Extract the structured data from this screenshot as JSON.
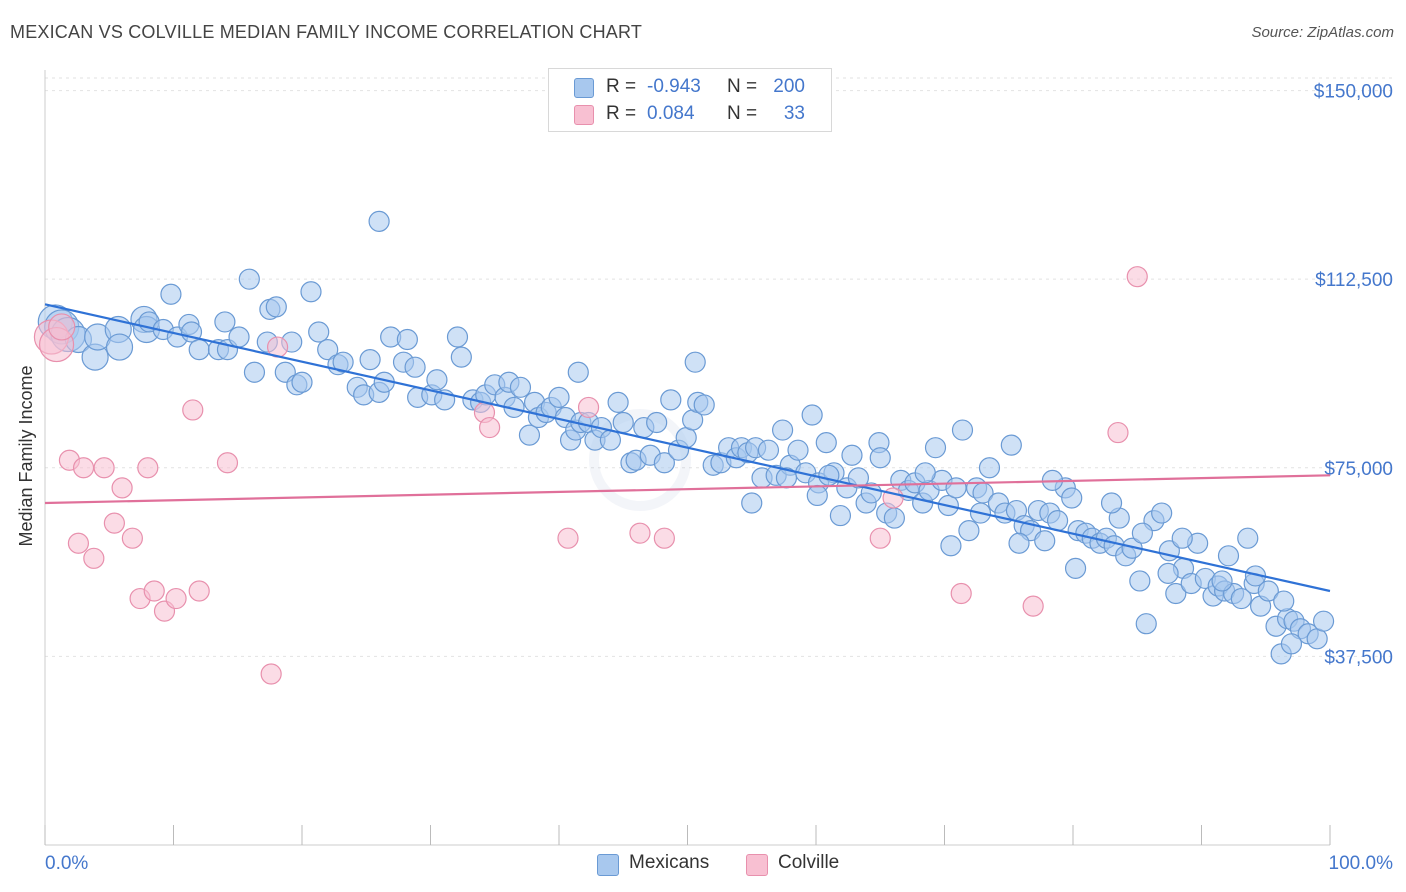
{
  "header": {
    "title": "MEXICAN VS COLVILLE MEDIAN FAMILY INCOME CORRELATION CHART",
    "source": "Source: ZipAtlas.com"
  },
  "legend": {
    "rows": [
      {
        "r_label": "R =",
        "r_value": "-0.943",
        "n_label": "N =",
        "n_value": "200"
      },
      {
        "r_label": "R =",
        "r_value": "0.084",
        "n_label": "N =",
        "n_value": "33"
      }
    ]
  },
  "bottom_legend": [
    "Mexicans",
    "Colville"
  ],
  "colors": {
    "blue_fill": "#a8c8ee",
    "blue_stroke": "#6a9ad4",
    "blue_line": "#2f72d6",
    "pink_fill": "#f8c0d2",
    "pink_stroke": "#e890ad",
    "pink_line": "#e0709a",
    "axis_label": "#4477cc",
    "grid": "#e2e2e2"
  },
  "chart_data": {
    "type": "scatter",
    "title": "MEXICAN VS COLVILLE MEDIAN FAMILY INCOME CORRELATION CHART",
    "xlabel": "",
    "ylabel": "Median Family Income",
    "xlim": [
      0,
      100
    ],
    "ylim": [
      0,
      152500
    ],
    "x_tick_labels": [
      "0.0%",
      "100.0%"
    ],
    "y_ticks": [
      37500,
      75000,
      112500,
      150000
    ],
    "y_tick_labels": [
      "$37,500",
      "$75,000",
      "$112,500",
      "$150,000"
    ],
    "grid": true,
    "series": [
      {
        "name": "Mexicans",
        "r": -0.943,
        "n": 200,
        "trend": {
          "x": [
            0,
            100
          ],
          "y": [
            107500,
            50500
          ]
        },
        "points": [
          [
            0.8,
            104000,
            3
          ],
          [
            1.3,
            103000,
            3
          ],
          [
            1.8,
            101500,
            3
          ],
          [
            2.6,
            100500,
            2
          ],
          [
            3.9,
            97000,
            2
          ],
          [
            4.1,
            101000,
            2
          ],
          [
            5.7,
            102500,
            2
          ],
          [
            5.8,
            99000,
            2
          ],
          [
            7.7,
            104500,
            2
          ],
          [
            7.9,
            102500,
            2
          ],
          [
            8.1,
            104000,
            1
          ],
          [
            9.2,
            102500,
            1
          ],
          [
            9.8,
            109500,
            1
          ],
          [
            10.3,
            101000,
            1
          ],
          [
            11.2,
            103500,
            1
          ],
          [
            11.4,
            102000,
            1
          ],
          [
            12.0,
            98500,
            1
          ],
          [
            13.5,
            98500,
            1
          ],
          [
            14.0,
            104000,
            1
          ],
          [
            14.2,
            98500,
            1
          ],
          [
            15.1,
            101000,
            1
          ],
          [
            15.9,
            112500,
            1
          ],
          [
            16.3,
            94000,
            1
          ],
          [
            17.3,
            100000,
            1
          ],
          [
            17.5,
            106500,
            1
          ],
          [
            18.0,
            107000,
            1
          ],
          [
            18.7,
            94000,
            1
          ],
          [
            19.2,
            100000,
            1
          ],
          [
            19.6,
            91500,
            1
          ],
          [
            20.0,
            92000,
            1
          ],
          [
            20.7,
            110000,
            1
          ],
          [
            21.3,
            102000,
            1
          ],
          [
            22.0,
            98500,
            1
          ],
          [
            22.8,
            95500,
            1
          ],
          [
            23.2,
            96000,
            1
          ],
          [
            24.3,
            91000,
            1
          ],
          [
            24.8,
            89500,
            1
          ],
          [
            25.3,
            96500,
            1
          ],
          [
            26.0,
            90000,
            1
          ],
          [
            26.4,
            92000,
            1
          ],
          [
            26.9,
            101000,
            1
          ],
          [
            27.9,
            96000,
            1
          ],
          [
            28.2,
            100500,
            1
          ],
          [
            28.8,
            95000,
            1
          ],
          [
            29.0,
            89000,
            1
          ],
          [
            30.1,
            89500,
            1
          ],
          [
            30.5,
            92500,
            1
          ],
          [
            31.1,
            88500,
            1
          ],
          [
            32.1,
            101000,
            1
          ],
          [
            32.4,
            97000,
            1
          ],
          [
            33.3,
            88500,
            1
          ],
          [
            33.9,
            88000,
            1
          ],
          [
            34.3,
            89500,
            1
          ],
          [
            35.0,
            91500,
            1
          ],
          [
            35.8,
            89000,
            1
          ],
          [
            36.1,
            92000,
            1
          ],
          [
            36.5,
            87000,
            1
          ],
          [
            37.0,
            91000,
            1
          ],
          [
            37.7,
            81500,
            1
          ],
          [
            38.1,
            88000,
            1
          ],
          [
            38.4,
            85000,
            1
          ],
          [
            39.0,
            86000,
            1
          ],
          [
            39.4,
            87000,
            1
          ],
          [
            40.0,
            89000,
            1
          ],
          [
            40.5,
            85000,
            1
          ],
          [
            40.9,
            80500,
            1
          ],
          [
            41.3,
            82500,
            1
          ],
          [
            41.7,
            84000,
            1
          ],
          [
            42.3,
            84000,
            1
          ],
          [
            42.8,
            80500,
            1
          ],
          [
            43.3,
            83000,
            1
          ],
          [
            44.0,
            80500,
            1
          ],
          [
            44.6,
            88000,
            1
          ],
          [
            45.0,
            84000,
            1
          ],
          [
            45.6,
            76000,
            1
          ],
          [
            46.0,
            76500,
            1
          ],
          [
            46.6,
            83000,
            1
          ],
          [
            47.1,
            77500,
            1
          ],
          [
            47.6,
            84000,
            1
          ],
          [
            48.2,
            76000,
            1
          ],
          [
            48.7,
            88500,
            1
          ],
          [
            49.3,
            78500,
            1
          ],
          [
            49.9,
            81000,
            1
          ],
          [
            50.4,
            84500,
            1
          ],
          [
            50.8,
            88000,
            1
          ],
          [
            51.3,
            87500,
            1
          ],
          [
            52.0,
            75500,
            1
          ],
          [
            52.6,
            76000,
            1
          ],
          [
            53.2,
            79000,
            1
          ],
          [
            53.8,
            77000,
            1
          ],
          [
            54.2,
            79000,
            1
          ],
          [
            54.7,
            78000,
            1
          ],
          [
            55.3,
            79000,
            1
          ],
          [
            55.8,
            73000,
            1
          ],
          [
            56.3,
            78500,
            1
          ],
          [
            56.9,
            73500,
            1
          ],
          [
            57.4,
            82500,
            1
          ],
          [
            58.0,
            75500,
            1
          ],
          [
            58.6,
            78500,
            1
          ],
          [
            59.2,
            74000,
            1
          ],
          [
            59.7,
            85500,
            1
          ],
          [
            60.2,
            72000,
            1
          ],
          [
            60.8,
            80000,
            1
          ],
          [
            61.4,
            74000,
            1
          ],
          [
            61.9,
            65500,
            1
          ],
          [
            62.4,
            71000,
            1
          ],
          [
            62.8,
            77500,
            1
          ],
          [
            63.3,
            73000,
            1
          ],
          [
            63.9,
            68000,
            1
          ],
          [
            64.3,
            70000,
            1
          ],
          [
            64.9,
            80000,
            1
          ],
          [
            65.5,
            66000,
            1
          ],
          [
            66.1,
            65000,
            1
          ],
          [
            66.6,
            72500,
            1
          ],
          [
            67.2,
            70500,
            1
          ],
          [
            67.7,
            72000,
            1
          ],
          [
            68.3,
            68000,
            1
          ],
          [
            68.8,
            70500,
            1
          ],
          [
            69.3,
            79000,
            1
          ],
          [
            69.8,
            72500,
            1
          ],
          [
            70.3,
            67500,
            1
          ],
          [
            70.9,
            71000,
            1
          ],
          [
            71.4,
            82500,
            1
          ],
          [
            71.9,
            62500,
            1
          ],
          [
            72.5,
            71000,
            1
          ],
          [
            73.0,
            70000,
            1
          ],
          [
            73.5,
            75000,
            1
          ],
          [
            74.2,
            68000,
            1
          ],
          [
            74.7,
            66000,
            1
          ],
          [
            75.2,
            79500,
            1
          ],
          [
            75.6,
            66500,
            1
          ],
          [
            76.2,
            63500,
            1
          ],
          [
            76.7,
            62500,
            1
          ],
          [
            77.3,
            66500,
            1
          ],
          [
            77.8,
            60500,
            1
          ],
          [
            78.2,
            66000,
            1
          ],
          [
            78.8,
            64500,
            1
          ],
          [
            79.4,
            71000,
            1
          ],
          [
            79.9,
            69000,
            1
          ],
          [
            80.4,
            62500,
            1
          ],
          [
            81.0,
            62000,
            1
          ],
          [
            81.5,
            61000,
            1
          ],
          [
            82.1,
            60000,
            1
          ],
          [
            82.6,
            61000,
            1
          ],
          [
            83.2,
            59500,
            1
          ],
          [
            83.6,
            65000,
            1
          ],
          [
            84.1,
            57500,
            1
          ],
          [
            84.6,
            59000,
            1
          ],
          [
            85.2,
            52500,
            1
          ],
          [
            85.7,
            44000,
            1
          ],
          [
            86.3,
            64500,
            1
          ],
          [
            86.9,
            66000,
            1
          ],
          [
            87.5,
            58500,
            1
          ],
          [
            88.0,
            50000,
            1
          ],
          [
            88.6,
            55000,
            1
          ],
          [
            89.2,
            52000,
            1
          ],
          [
            89.7,
            60000,
            1
          ],
          [
            90.3,
            53000,
            1
          ],
          [
            90.9,
            49500,
            1
          ],
          [
            91.3,
            51500,
            1
          ],
          [
            91.8,
            50500,
            1
          ],
          [
            92.5,
            50000,
            1
          ],
          [
            93.1,
            49000,
            1
          ],
          [
            93.6,
            61000,
            1
          ],
          [
            94.1,
            52000,
            1
          ],
          [
            94.6,
            47500,
            1
          ],
          [
            95.2,
            50500,
            1
          ],
          [
            95.8,
            43500,
            1
          ],
          [
            96.2,
            38000,
            1
          ],
          [
            96.7,
            45000,
            1
          ],
          [
            97.2,
            44500,
            1
          ],
          [
            97.7,
            43000,
            1
          ],
          [
            98.3,
            42000,
            1
          ],
          [
            99.0,
            41000,
            1
          ],
          [
            99.5,
            44500,
            1
          ],
          [
            26.0,
            124000,
            1
          ],
          [
            50.6,
            96000,
            1
          ],
          [
            41.5,
            94000,
            1
          ],
          [
            65.0,
            77000,
            1
          ],
          [
            70.5,
            59500,
            1
          ],
          [
            78.4,
            72500,
            1
          ],
          [
            83.0,
            68000,
            1
          ],
          [
            87.4,
            54000,
            1
          ],
          [
            92.1,
            57500,
            1
          ],
          [
            96.4,
            48500,
            1
          ],
          [
            55.0,
            68000,
            1
          ],
          [
            57.7,
            73000,
            1
          ],
          [
            60.1,
            69500,
            1
          ],
          [
            61.0,
            73500,
            1
          ],
          [
            68.5,
            74000,
            1
          ],
          [
            72.8,
            66000,
            1
          ],
          [
            75.8,
            60000,
            1
          ],
          [
            80.2,
            55000,
            1
          ],
          [
            85.4,
            62000,
            1
          ],
          [
            88.5,
            61000,
            1
          ],
          [
            91.6,
            52500,
            1
          ],
          [
            94.2,
            53500,
            1
          ],
          [
            97.0,
            40000,
            1
          ]
        ]
      },
      {
        "name": "Colville",
        "r": 0.084,
        "n": 33,
        "trend": {
          "x": [
            0,
            100
          ],
          "y": [
            68000,
            73500
          ]
        },
        "points": [
          [
            0.5,
            101000,
            3
          ],
          [
            0.9,
            99500,
            3
          ],
          [
            1.3,
            103000,
            2
          ],
          [
            1.9,
            76500,
            1
          ],
          [
            2.6,
            60000,
            1
          ],
          [
            3.0,
            75000,
            1
          ],
          [
            3.8,
            57000,
            1
          ],
          [
            4.6,
            75000,
            1
          ],
          [
            5.4,
            64000,
            1
          ],
          [
            6.0,
            71000,
            1
          ],
          [
            6.8,
            61000,
            1
          ],
          [
            7.4,
            49000,
            1
          ],
          [
            8.0,
            75000,
            1
          ],
          [
            8.5,
            50500,
            1
          ],
          [
            9.3,
            46500,
            1
          ],
          [
            10.2,
            49000,
            1
          ],
          [
            11.5,
            86500,
            1
          ],
          [
            12.0,
            50500,
            1
          ],
          [
            14.2,
            76000,
            1
          ],
          [
            17.6,
            34000,
            1
          ],
          [
            18.1,
            99000,
            1
          ],
          [
            34.2,
            86000,
            1
          ],
          [
            34.6,
            83000,
            1
          ],
          [
            40.7,
            61000,
            1
          ],
          [
            42.3,
            87000,
            1
          ],
          [
            46.3,
            62000,
            1
          ],
          [
            48.2,
            61000,
            1
          ],
          [
            65.0,
            61000,
            1
          ],
          [
            66.0,
            69000,
            1
          ],
          [
            71.3,
            50000,
            1
          ],
          [
            76.9,
            47500,
            1
          ],
          [
            83.5,
            82000,
            1
          ],
          [
            85.0,
            113000,
            1
          ]
        ]
      }
    ]
  }
}
